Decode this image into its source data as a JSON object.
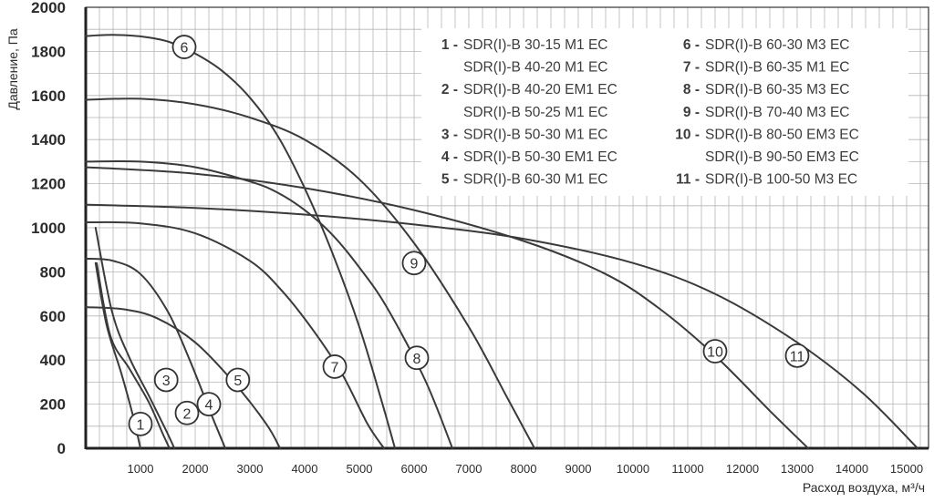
{
  "chart_data": {
    "type": "line",
    "xlabel": "Расход воздуха, м³/ч",
    "ylabel": "Давление, Па",
    "xlim": [
      0,
      15400
    ],
    "ylim": [
      0,
      2000
    ],
    "x_ticks": [
      1000,
      2000,
      3000,
      4000,
      5000,
      6000,
      7000,
      8000,
      9000,
      10000,
      11000,
      12000,
      13000,
      14000,
      15000
    ],
    "x_tick_labels": [
      "1000",
      "2000",
      "3000",
      "4000",
      "5000",
      "6000",
      "7000",
      "8000",
      "9000",
      "10000",
      "11000",
      "12000",
      "13000",
      "14000",
      "15000"
    ],
    "y_ticks": [
      0,
      200,
      400,
      600,
      800,
      1000,
      1200,
      1400,
      1600,
      1800,
      2000
    ],
    "y_tick_labels": [
      "0",
      "200",
      "400",
      "600",
      "800",
      "1000",
      "1200",
      "1400",
      "1600",
      "1800",
      "2000"
    ],
    "grid": true,
    "line_color": "#3a3a3a",
    "grid_color": "#b5b5b5",
    "series": [
      {
        "marker": "1",
        "x": [
          180,
          380,
          650,
          850,
          1000
        ],
        "y": [
          840,
          560,
          340,
          160,
          0
        ],
        "marker_at": [
          1000,
          110
        ]
      },
      {
        "marker": "2",
        "x": [
          200,
          450,
          800,
          1150,
          1400,
          1530
        ],
        "y": [
          840,
          510,
          360,
          210,
          70,
          0
        ],
        "marker_at": [
          1850,
          160
        ]
      },
      {
        "marker": "3",
        "x": [
          180,
          480,
          800,
          1150,
          1450,
          1620
        ],
        "y": [
          1000,
          620,
          410,
          240,
          90,
          0
        ],
        "marker_at": [
          1470,
          310
        ]
      },
      {
        "marker": "4",
        "x": [
          0,
          500,
          1000,
          1500,
          1900,
          2300,
          2550
        ],
        "y": [
          860,
          850,
          790,
          620,
          400,
          150,
          0
        ],
        "marker_at": [
          2250,
          200
        ]
      },
      {
        "marker": "5",
        "x": [
          0,
          700,
          1300,
          2000,
          2700,
          3300,
          3550
        ],
        "y": [
          640,
          630,
          590,
          480,
          300,
          110,
          0
        ],
        "marker_at": [
          2780,
          310
        ]
      },
      {
        "marker": "6",
        "x": [
          0,
          500,
          1000,
          1500,
          2000,
          2500,
          3000,
          3500,
          4000,
          4500,
          5000,
          5400,
          5650
        ],
        "y": [
          1870,
          1875,
          1868,
          1845,
          1790,
          1710,
          1590,
          1420,
          1180,
          890,
          550,
          220,
          0
        ],
        "marker_at": [
          1800,
          1820
        ]
      },
      {
        "marker": "7",
        "x": [
          0,
          1000,
          2000,
          3000,
          3600,
          4200,
          4700,
          5150,
          5450
        ],
        "y": [
          1025,
          1020,
          975,
          850,
          710,
          520,
          330,
          110,
          0
        ],
        "marker_at": [
          4550,
          370
        ]
      },
      {
        "marker": "8",
        "x": [
          0,
          1000,
          2000,
          3000,
          3500,
          4000,
          4500,
          5000,
          5500,
          6200,
          6700
        ],
        "y": [
          1300,
          1300,
          1275,
          1210,
          1160,
          1080,
          970,
          820,
          640,
          310,
          0
        ],
        "marker_at": [
          6050,
          410
        ]
      },
      {
        "marker": "9",
        "x": [
          0,
          1000,
          2000,
          3000,
          4000,
          5000,
          6000,
          7000,
          7700,
          8200
        ],
        "y": [
          1580,
          1585,
          1560,
          1500,
          1400,
          1220,
          930,
          550,
          230,
          0
        ],
        "marker_at": [
          6000,
          840
        ]
      },
      {
        "marker": "10",
        "x": [
          0,
          2000,
          4000,
          6000,
          8000,
          9500,
          10500,
          11500,
          12500,
          13200
        ],
        "y": [
          1275,
          1245,
          1180,
          1080,
          940,
          790,
          630,
          420,
          170,
          0
        ],
        "marker_at": [
          11500,
          440
        ]
      },
      {
        "marker": "11",
        "x": [
          0,
          2000,
          4000,
          6000,
          8000,
          10000,
          11500,
          13000,
          14200,
          15200
        ],
        "y": [
          1105,
          1090,
          1060,
          1015,
          950,
          840,
          700,
          480,
          250,
          0
        ],
        "marker_at": [
          13000,
          420
        ]
      }
    ],
    "legend": {
      "placement": "top-right",
      "left_column": [
        {
          "num": "1 -",
          "text": "SDR(I)-B 30-15 M1 EC"
        },
        {
          "num": "",
          "text": "SDR(I)-B 40-20 M1 EC"
        },
        {
          "num": "2 -",
          "text": "SDR(I)-B 40-20 EM1 EC"
        },
        {
          "num": "",
          "text": "SDR(I)-B 50-25 M1 EC"
        },
        {
          "num": "3 -",
          "text": "SDR(I)-B 50-30 M1 EC"
        },
        {
          "num": "4 -",
          "text": "SDR(I)-B 50-30 EM1 EC"
        },
        {
          "num": "5 -",
          "text": "SDR(I)-B 60-30 M1 EC"
        }
      ],
      "right_column": [
        {
          "num": "6 -",
          "text": "SDR(I)-B 60-30 M3 EC"
        },
        {
          "num": "7 -",
          "text": "SDR(I)-B 60-35 M1 EC"
        },
        {
          "num": "8 -",
          "text": "SDR(I)-B 60-35 M3 EC"
        },
        {
          "num": "9 -",
          "text": "SDR(I)-B 70-40 M3 EC"
        },
        {
          "num": "10 -",
          "text": "SDR(I)-B 80-50 EM3 EC"
        },
        {
          "num": "",
          "text": "SDR(I)-B 90-50 EM3 EC"
        },
        {
          "num": "11 -",
          "text": "SDR(I)-B 100-50 M3 EC"
        }
      ]
    }
  }
}
